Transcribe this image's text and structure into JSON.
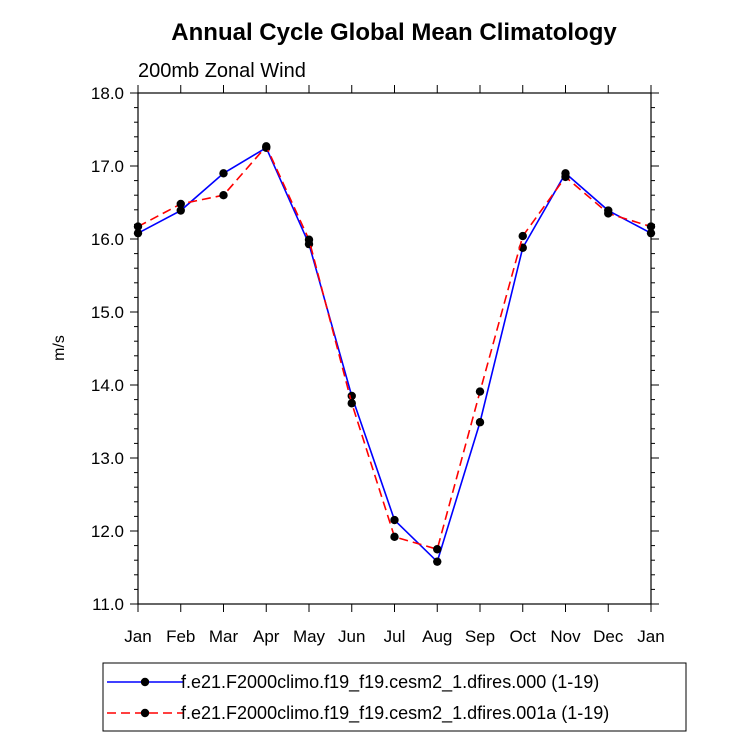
{
  "chart_data": {
    "type": "line",
    "title": "Annual Cycle Global Mean Climatology",
    "subtitle": "200mb Zonal Wind",
    "ylabel": "m/s",
    "xlabel": "",
    "categories": [
      "Jan",
      "Feb",
      "Mar",
      "Apr",
      "May",
      "Jun",
      "Jul",
      "Aug",
      "Sep",
      "Oct",
      "Nov",
      "Dec",
      "Jan"
    ],
    "ylim": [
      11.0,
      18.0
    ],
    "yticks": [
      "11.0",
      "12.0",
      "13.0",
      "14.0",
      "15.0",
      "16.0",
      "17.0",
      "18.0"
    ],
    "series": [
      {
        "name": "f.e21.F2000climo.f19_f19.cesm2_1.dfires.000 (1-19)",
        "color": "#0000ff",
        "dash": "solid",
        "values": [
          16.08,
          16.39,
          16.9,
          17.25,
          15.93,
          13.85,
          12.15,
          11.58,
          13.49,
          15.88,
          16.9,
          16.39,
          16.08
        ]
      },
      {
        "name": "f.e21.F2000climo.f19_f19.cesm2_1.dfires.001a (1-19)",
        "color": "#ff0000",
        "dash": "dashed",
        "values": [
          16.17,
          16.48,
          16.6,
          17.27,
          15.99,
          13.75,
          11.92,
          11.75,
          13.91,
          16.04,
          16.85,
          16.35,
          16.17
        ]
      }
    ],
    "legend_placement": "bottom",
    "grid": false
  }
}
